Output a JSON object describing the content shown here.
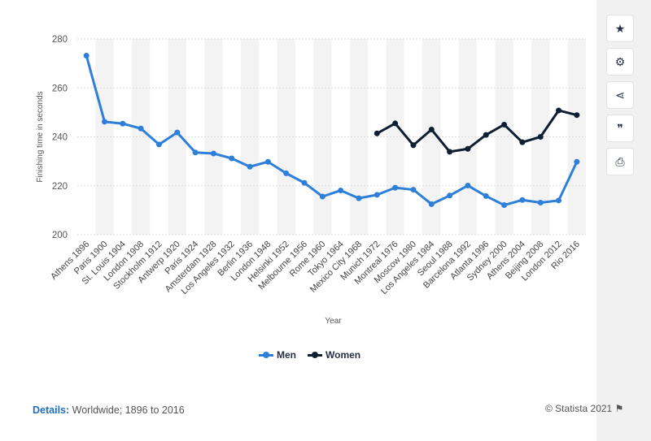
{
  "toolbar": {
    "buttons": [
      {
        "icon": "star-icon",
        "glyph": "★"
      },
      {
        "icon": "gear-icon",
        "glyph": "⚙"
      },
      {
        "icon": "share-icon",
        "glyph": "⋖"
      },
      {
        "icon": "quote-icon",
        "glyph": "❞"
      },
      {
        "icon": "print-icon",
        "glyph": "⎙"
      }
    ]
  },
  "footer": {
    "details_label": "Details:",
    "details_text": "Worldwide; 1896 to 2016",
    "credit": "© Statista 2021"
  },
  "colors": {
    "men": "#2e7fd9",
    "women": "#0f1f33",
    "grid": "#dcdcdc",
    "band": "#f3f3f3"
  },
  "chart_data": {
    "type": "line",
    "xlabel": "Year",
    "ylabel": "Finishing time in seconds",
    "ylim": [
      200,
      280
    ],
    "yticks": [
      200,
      220,
      240,
      260,
      280
    ],
    "grid": true,
    "legend_position": "bottom",
    "categories": [
      "Athens 1896",
      "Paris 1900",
      "St. Louis 1904",
      "London 1908",
      "Stockholm 1912",
      "Antwerp 1920",
      "Paris 1924",
      "Amsterdam 1928",
      "Los Angeles 1932",
      "Berlin 1936",
      "London 1948",
      "Helsinki 1952",
      "Melbourne 1956",
      "Rome 1960",
      "Tokyo 1964",
      "Mexico City 1968",
      "Munich 1972",
      "Montreal 1976",
      "Moscow 1980",
      "Los Angeles 1984",
      "Seoul 1988",
      "Barcelona 1992",
      "Atlanta 1996",
      "Sydney 2000",
      "Athens 2004",
      "Beijing 2008",
      "London 2012",
      "Rio 2016"
    ],
    "series": [
      {
        "name": "Men",
        "values": [
          273.2,
          246.2,
          245.4,
          243.4,
          236.9,
          241.8,
          233.6,
          233.2,
          231.2,
          227.8,
          229.8,
          225.1,
          221.2,
          215.6,
          218.1,
          214.9,
          216.3,
          219.2,
          218.4,
          212.5,
          216.0,
          220.1,
          215.8,
          212.1,
          214.2,
          213.1,
          214.0,
          229.8
        ]
      },
      {
        "name": "Women",
        "values": [
          null,
          null,
          null,
          null,
          null,
          null,
          null,
          null,
          null,
          null,
          null,
          null,
          null,
          null,
          null,
          null,
          241.4,
          245.5,
          236.6,
          243.0,
          233.9,
          235.1,
          240.8,
          245.0,
          237.8,
          240.0,
          250.8,
          248.9
        ]
      }
    ]
  }
}
